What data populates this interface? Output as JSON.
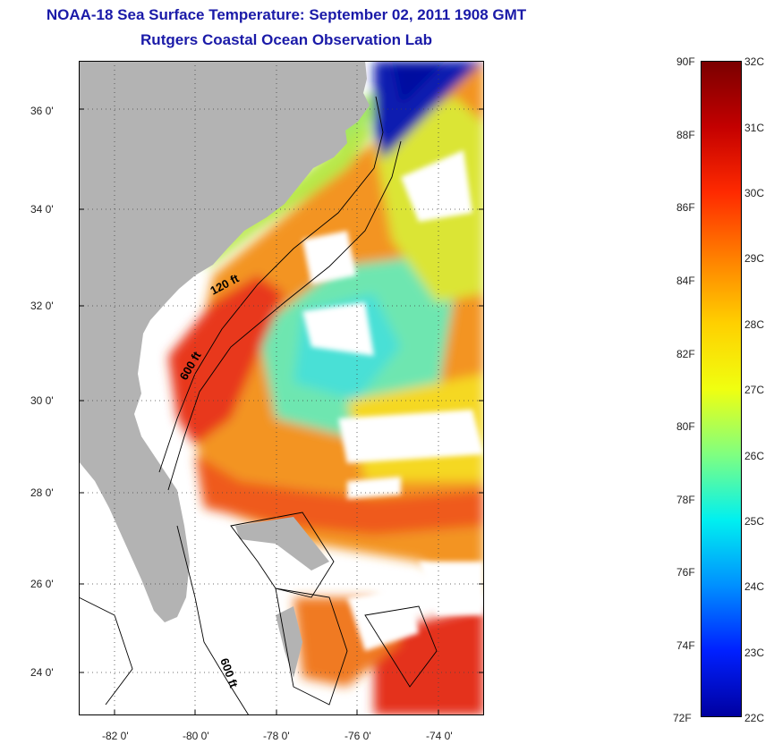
{
  "title": "NOAA-18 Sea Surface Temperature:  September 02, 2011 1908 GMT",
  "subtitle": "Rutgers Coastal Ocean Observation Lab",
  "map": {
    "lat_ticks": [
      "36 0'",
      "34 0'",
      "32 0'",
      "30 0'",
      "28 0'",
      "26 0'",
      "24 0'"
    ],
    "lon_ticks": [
      "-82 0'",
      "-80 0'",
      "-78 0'",
      "-76 0'",
      "-74 0'"
    ],
    "contour_labels": [
      "120 ft",
      "600 ft",
      "600 ft"
    ],
    "colors": {
      "land": "#b3b3b3",
      "cloud": "#ffffff",
      "warm": "#ef4a1c",
      "hot": "#e02b14",
      "mid": "#f2c21b",
      "cool": "#5fe0c0",
      "cold": "#0a1fb0"
    }
  },
  "colorbar": {
    "f_labels": [
      "90F",
      "88F",
      "86F",
      "84F",
      "82F",
      "80F",
      "78F",
      "76F",
      "74F",
      "72F"
    ],
    "c_labels": [
      "32C",
      "31C",
      "30C",
      "29C",
      "28C",
      "27C",
      "26C",
      "25C",
      "24C",
      "23C",
      "22C"
    ],
    "gradient_colors": [
      "#7a0000",
      "#c40000",
      "#ff2a00",
      "#ff8000",
      "#ffd000",
      "#f0ff10",
      "#80ff80",
      "#00f0f0",
      "#0090ff",
      "#0020ff",
      "#0000a0"
    ]
  }
}
